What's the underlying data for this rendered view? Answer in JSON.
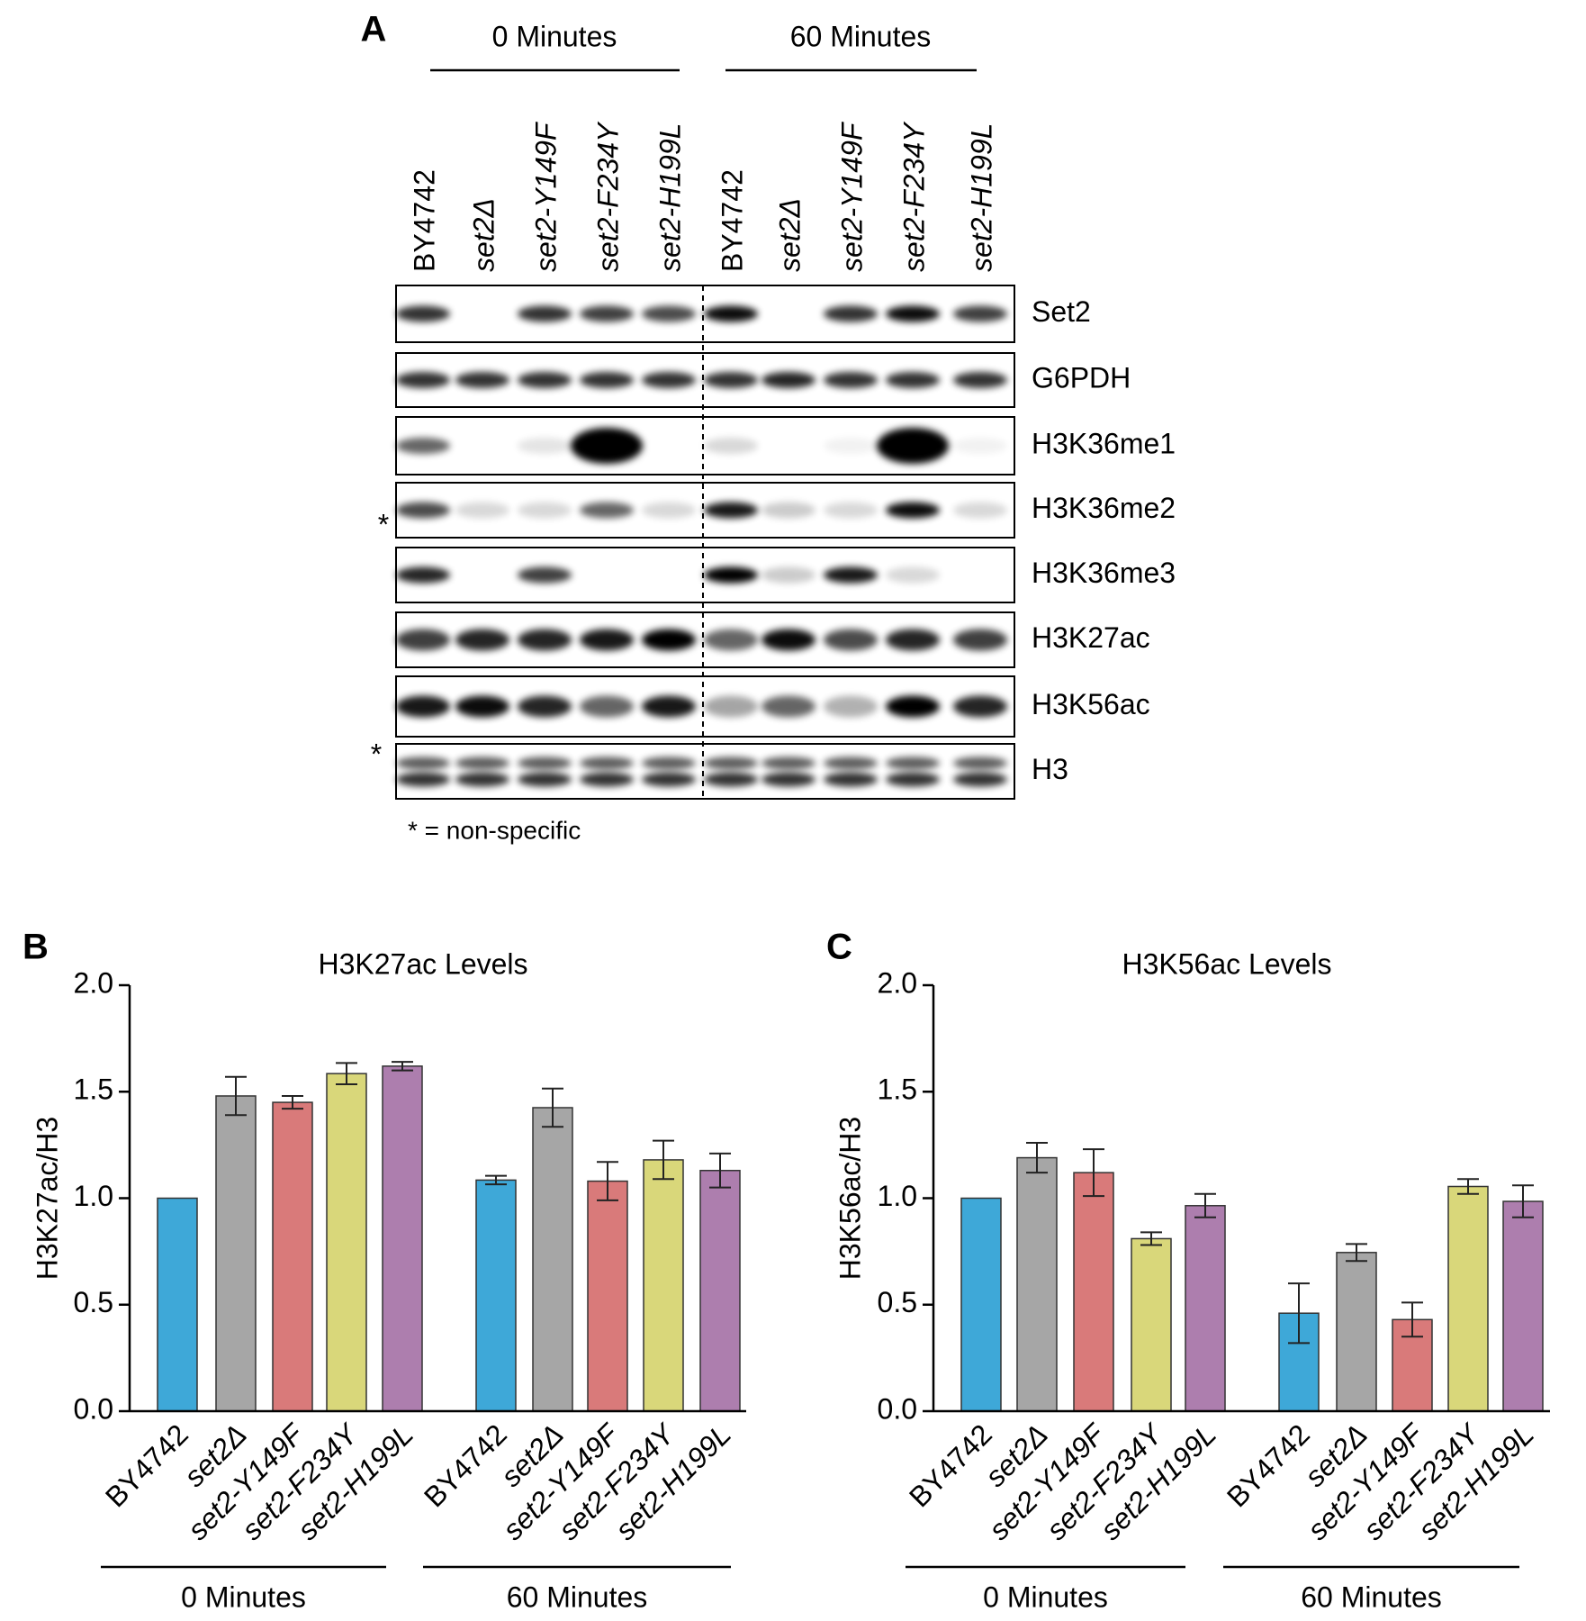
{
  "panel_a": {
    "label": "A",
    "groups": [
      "0 Minutes",
      "60 Minutes"
    ],
    "lanes": [
      "BY4742",
      "set2Δ",
      "set2-Y149F",
      "set2-F234Y",
      "set2-H199L",
      "BY4742",
      "set2Δ",
      "set2-Y149F",
      "set2-F234Y",
      "set2-H199L"
    ],
    "blots": [
      "Set2",
      "G6PDH",
      "H3K36me1",
      "H3K36me2",
      "H3K36me3",
      "H3K27ac",
      "H3K56ac",
      "H3"
    ],
    "asterisk": "*",
    "note": "* = non-specific"
  },
  "chart_data": [
    {
      "type": "bar",
      "label": "B",
      "title": "H3K27ac Levels",
      "ylabel": "H3K27ac/H3",
      "categories": [
        "BY4742",
        "set2Δ",
        "set2-Y149F",
        "set2-F234Y",
        "set2-H199L",
        "BY4742",
        "set2Δ",
        "set2-Y149F",
        "set2-F234Y",
        "set2-H199L"
      ],
      "groups": [
        "0 Minutes",
        "60 Minutes"
      ],
      "values": [
        1.0,
        1.48,
        1.45,
        1.585,
        1.62,
        1.085,
        1.425,
        1.08,
        1.18,
        1.13
      ],
      "errors": [
        0,
        0.09,
        0.03,
        0.05,
        0.02,
        0.02,
        0.09,
        0.09,
        0.09,
        0.08
      ],
      "colors": [
        "#3ea8d8",
        "#a6a6a6",
        "#d97a7a",
        "#d9d77a",
        "#ad7eae"
      ],
      "ylim": [
        0,
        2
      ],
      "yticks": [
        {
          "value": 0,
          "label": "0.0"
        },
        {
          "value": 0.5,
          "label": "0.5"
        },
        {
          "value": 1,
          "label": "1.0"
        },
        {
          "value": 1.5,
          "label": "1.5"
        },
        {
          "value": 2,
          "label": "2.0"
        }
      ]
    },
    {
      "type": "bar",
      "label": "C",
      "title": "H3K56ac Levels",
      "ylabel": "H3K56ac/H3",
      "categories": [
        "BY4742",
        "set2Δ",
        "set2-Y149F",
        "set2-F234Y",
        "set2-H199L",
        "BY4742",
        "set2Δ",
        "set2-Y149F",
        "set2-F234Y",
        "set2-H199L"
      ],
      "groups": [
        "0 Minutes",
        "60 Minutes"
      ],
      "values": [
        1.0,
        1.19,
        1.12,
        0.81,
        0.965,
        0.46,
        0.745,
        0.43,
        1.055,
        0.985
      ],
      "errors": [
        0,
        0.07,
        0.11,
        0.03,
        0.055,
        0.14,
        0.04,
        0.08,
        0.035,
        0.075
      ],
      "colors": [
        "#3ea8d8",
        "#a6a6a6",
        "#d97a7a",
        "#d9d77a",
        "#ad7eae"
      ],
      "ylim": [
        0,
        2
      ],
      "yticks": [
        {
          "value": 0,
          "label": "0.0"
        },
        {
          "value": 0.5,
          "label": "0.5"
        },
        {
          "value": 1,
          "label": "1.0"
        },
        {
          "value": 1.5,
          "label": "1.5"
        },
        {
          "value": 2,
          "label": "2.0"
        }
      ]
    }
  ]
}
